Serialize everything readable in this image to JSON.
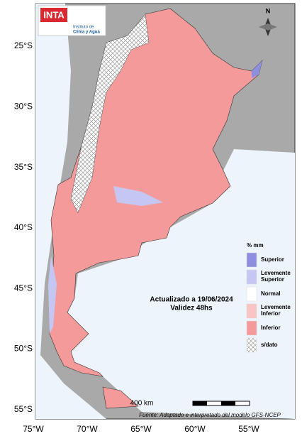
{
  "logo": {
    "brand": "INTA",
    "institute": "Instituto de",
    "institute_name": "Clima y Agua"
  },
  "north": "N",
  "axes": {
    "lat_labels": [
      "25°S",
      "30°S",
      "35°S",
      "40°S",
      "45°S",
      "50°S",
      "55°S"
    ],
    "lon_labels": [
      "75°W",
      "70°W",
      "65°W",
      "60°W",
      "55°W"
    ]
  },
  "legend": {
    "title": "% mm",
    "items": [
      {
        "label": "Superior",
        "color": "#8f8fe0"
      },
      {
        "label": "Levemente Superior",
        "color": "#c6c6f2"
      },
      {
        "label": "Normal",
        "color": "#ffffff"
      },
      {
        "label": "Levemente Inferior",
        "color": "#f9c4c4"
      },
      {
        "label": "Inferior",
        "color": "#f49a9a"
      },
      {
        "label": "s/dato",
        "color": "hatch"
      }
    ]
  },
  "update": {
    "line1": "Actualizado a 19/06/2024",
    "line2": "Validez 48hs"
  },
  "scale": "400 km",
  "source": "Fuente: Adaptado e interpretado del modelo GFS-NCEP"
}
